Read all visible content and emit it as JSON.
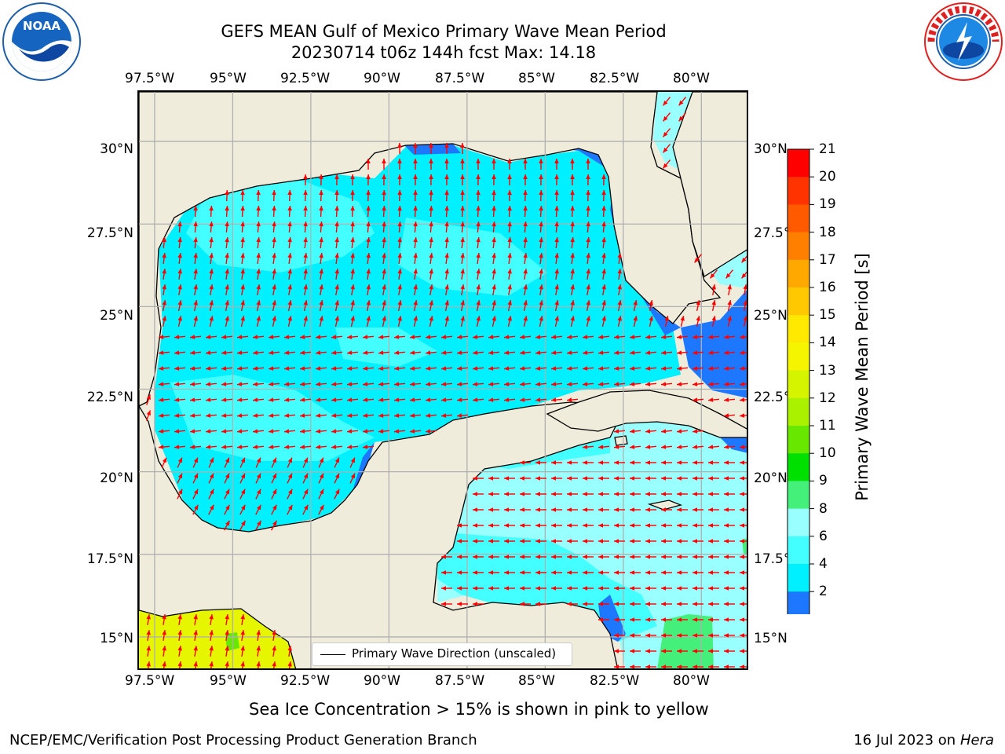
{
  "title": {
    "line1": "GEFS MEAN Gulf of Mexico Primary Wave Mean Period",
    "line2": "20230714 t06z 144h fcst   Max: 14.18"
  },
  "axes": {
    "lon_ticks": [
      "97.5°W",
      "95°W",
      "92.5°W",
      "90°W",
      "87.5°W",
      "85°W",
      "82.5°W",
      "80°W"
    ],
    "lat_ticks": [
      "30°N",
      "27.5°N",
      "25°N",
      "22.5°N",
      "20°N",
      "17.5°N",
      "15°N"
    ],
    "lon_range": [
      -98,
      -78.5
    ],
    "lat_range": [
      14,
      31.5
    ],
    "grid": true
  },
  "legend": {
    "label": "Primary Wave Direction (unscaled)"
  },
  "colorbar": {
    "label": "Primary Wave Mean Period [s]",
    "levels": [
      "21",
      "20",
      "19",
      "18",
      "17",
      "16",
      "15",
      "14",
      "13",
      "12",
      "11",
      "10",
      "9",
      "8",
      "6",
      "4",
      "2"
    ],
    "colors": [
      "#ff0000",
      "#ff3300",
      "#ff5a00",
      "#ff8000",
      "#ffa800",
      "#ffc800",
      "#ffe900",
      "#f5f500",
      "#d4f400",
      "#aaf100",
      "#68e800",
      "#00e000",
      "#44f07a",
      "#99ffff",
      "#44ffff",
      "#00f0ff",
      "#1e78ff"
    ],
    "under_color": "#0000ee"
  },
  "colors": {
    "land": "#efecdc",
    "coast": "#000000",
    "arrow": "#ff0000",
    "grid": "#b0b0b0"
  },
  "footer": {
    "ice_note": "Sea Ice Concentration > 15% is shown in pink to yellow",
    "org": "NCEP/EMC/Verification Post Processing Product Generation Branch",
    "date": "16 Jul 2023 on",
    "host": "Hera"
  },
  "logos": {
    "left": "noa-logo",
    "right": "national-weather-service-logo",
    "left_text": "NOAA",
    "right_ring_text": "NATIONAL WEATHER SERVICE"
  }
}
